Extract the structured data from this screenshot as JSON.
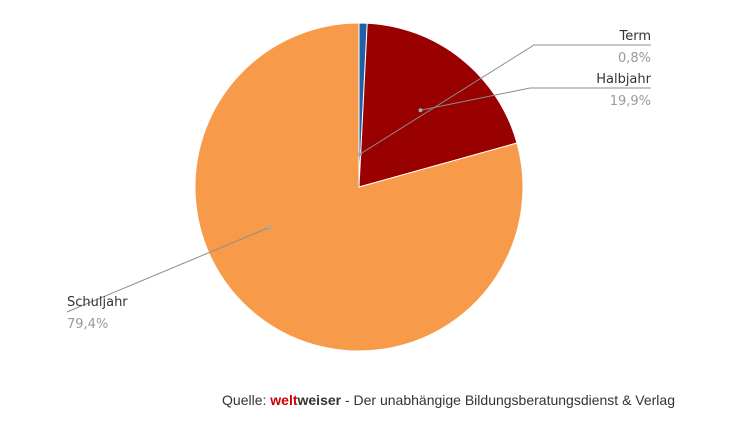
{
  "chart_data": {
    "type": "pie",
    "slices": [
      {
        "label": "Term",
        "value": 0.8,
        "value_label": "0,8%",
        "color": "#1f5fa8"
      },
      {
        "label": "Halbjahr",
        "value": 19.9,
        "value_label": "19,9%",
        "color": "#990000"
      },
      {
        "label": "Schuljahr",
        "value": 79.4,
        "value_label": "79,4%",
        "color": "#f79a4a"
      }
    ],
    "start_angle": "top, clockwise",
    "label_style": "callout lines"
  },
  "source": {
    "prefix": "Quelle: ",
    "brand_part1": "welt",
    "brand_part2": "weiser",
    "suffix": " - Der unabhängige Bildungsberatungsdienst & Verlag"
  }
}
